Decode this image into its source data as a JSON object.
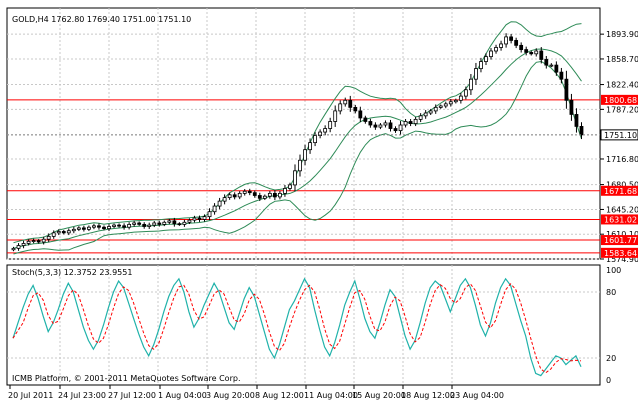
{
  "main_panel": {
    "symbol_info": "GOLD,H4 1762.80 1769.40 1751.00 1751.10",
    "price_ticks": [
      "1893.90",
      "1858.70",
      "1822.40",
      "1787.20",
      "1751.10",
      "1716.80",
      "1680.50",
      "1645.20",
      "1610.10",
      "1574.90"
    ],
    "current_price": "1751.10",
    "horizontal_lines": [
      {
        "price": 1800.68,
        "label": "1800.68"
      },
      {
        "price": 1671.68,
        "label": "1671.68"
      },
      {
        "price": 1631.02,
        "label": "1631.02"
      },
      {
        "price": 1601.77,
        "label": "1601.77"
      },
      {
        "price": 1583.64,
        "label": "1583.64"
      }
    ],
    "ylim": [
      1574.9,
      1931
    ],
    "line_color": "#ff0000",
    "band_color": "#2e8b57",
    "candle_color": "#000000"
  },
  "stoch_panel": {
    "title": "Stoch(5,3,3) 12.3752 23.9551",
    "levels": [
      "100",
      "80",
      "20",
      "0"
    ],
    "main_color": "#20b2aa",
    "signal_color": "#ff0000"
  },
  "copyright": "ICMB Platform, © 2001-2011 MetaQuotes Software Corp.",
  "time_axis": [
    "20 Jul 2011",
    "24 Jul 23:00",
    "27 Jul 12:00",
    "1 Aug 04:00",
    "3 Aug 20:00",
    "8 Aug 12:00",
    "11 Aug 04:00",
    "15 Aug 20:00",
    "18 Aug 12:00",
    "23 Aug 04:00"
  ],
  "chart_data": {
    "type": "line",
    "series": [
      {
        "close": [
          1590,
          1594,
          1597,
          1600,
          1601,
          1599,
          1603,
          1607,
          1612,
          1614,
          1612,
          1615,
          1617,
          1619,
          1617,
          1620,
          1622,
          1620,
          1618,
          1621,
          1623,
          1622,
          1620,
          1624,
          1626,
          1624,
          1621,
          1623,
          1626,
          1624,
          1627,
          1629,
          1625,
          1624,
          1627,
          1630,
          1633,
          1631,
          1635,
          1642,
          1650,
          1657,
          1662,
          1666,
          1663,
          1668,
          1671,
          1669,
          1665,
          1661,
          1664,
          1668,
          1663,
          1668,
          1675,
          1680,
          1700,
          1715,
          1730,
          1740,
          1750,
          1755,
          1760,
          1770,
          1785,
          1795,
          1800,
          1790,
          1785,
          1775,
          1770,
          1765,
          1762,
          1765,
          1768,
          1760,
          1757,
          1765,
          1770,
          1767,
          1773,
          1778,
          1782,
          1785,
          1790,
          1792,
          1795,
          1798,
          1800,
          1806,
          1815,
          1830,
          1845,
          1855,
          1862,
          1870,
          1875,
          1880,
          1890,
          1885,
          1878,
          1872,
          1868,
          1866,
          1870,
          1858,
          1850,
          1850,
          1840,
          1830,
          1800,
          1780,
          1763,
          1751
        ]
      }
    ],
    "stochastic_main": [
      38,
      52,
      66,
      78,
      86,
      74,
      58,
      44,
      52,
      64,
      78,
      88,
      80,
      64,
      48,
      36,
      28,
      36,
      50,
      66,
      80,
      90,
      84,
      70,
      56,
      42,
      30,
      22,
      32,
      46,
      62,
      76,
      86,
      92,
      80,
      62,
      48,
      56,
      68,
      78,
      88,
      80,
      66,
      52,
      46,
      60,
      74,
      84,
      76,
      60,
      44,
      28,
      20,
      32,
      48,
      64,
      72,
      82,
      92,
      84,
      64,
      46,
      30,
      22,
      34,
      50,
      68,
      80,
      90,
      74,
      56,
      44,
      38,
      52,
      68,
      82,
      76,
      58,
      40,
      28,
      36,
      52,
      70,
      84,
      90,
      86,
      74,
      62,
      74,
      86,
      92,
      84,
      68,
      50,
      40,
      52,
      70,
      84,
      92,
      86,
      70,
      54,
      40,
      20,
      6,
      4,
      10,
      16,
      22,
      20,
      14,
      18,
      22,
      12
    ],
    "stochastic_signal_shift": 2,
    "ylim": [
      0,
      100
    ]
  }
}
